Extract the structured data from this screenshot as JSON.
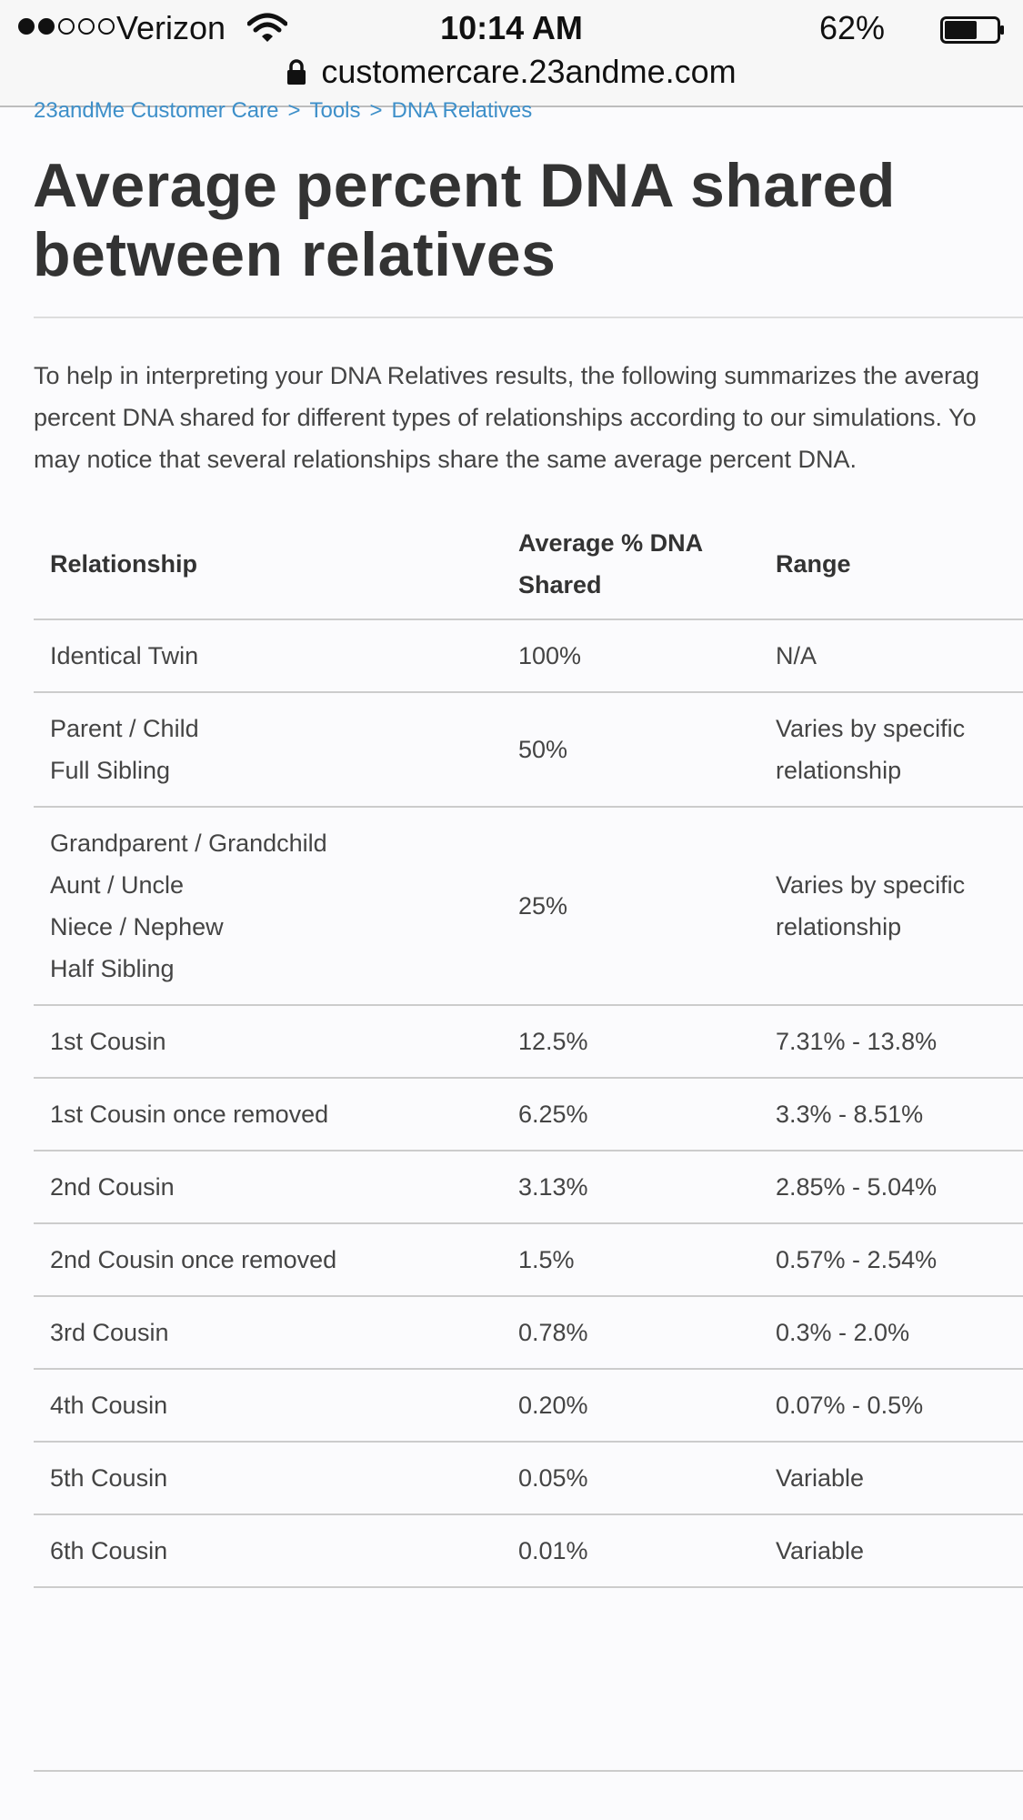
{
  "status_bar": {
    "carrier": "Verizon",
    "time": "10:14 AM",
    "battery_percent": "62%",
    "battery_level": 0.62,
    "signal_bars_filled": 2,
    "signal_bars_total": 5,
    "url": "customercare.23andme.com"
  },
  "breadcrumb": {
    "items": [
      "23andMe Customer Care",
      "Tools",
      "DNA Relatives"
    ],
    "separator": ">"
  },
  "page": {
    "title_line1": "Average percent DNA shared",
    "title_line2": "between relatives",
    "intro": "To help in interpreting your DNA Relatives results, the following summarizes the averag\npercent DNA shared for different types of relationships according to our simulations. Yo\nmay notice that several relationships share the same average percent DNA."
  },
  "table": {
    "headers": {
      "relationship": "Relationship",
      "average_line1": "Average % DNA",
      "average_line2": "Shared",
      "range": "Range"
    },
    "rows": [
      {
        "relationship": [
          "Identical Twin"
        ],
        "average": "100%",
        "range": [
          "N/A"
        ]
      },
      {
        "relationship": [
          "Parent / Child",
          "Full Sibling"
        ],
        "average": "50%",
        "range": [
          "Varies by specific",
          "relationship"
        ]
      },
      {
        "relationship": [
          "Grandparent / Grandchild",
          "Aunt / Uncle",
          "Niece / Nephew",
          "Half Sibling"
        ],
        "average": "25%",
        "range": [
          "Varies by specific",
          "relationship"
        ]
      },
      {
        "relationship": [
          "1st Cousin"
        ],
        "average": "12.5%",
        "range": [
          "7.31% - 13.8%"
        ]
      },
      {
        "relationship": [
          "1st Cousin once removed"
        ],
        "average": "6.25%",
        "range": [
          "3.3% - 8.51%"
        ]
      },
      {
        "relationship": [
          "2nd Cousin"
        ],
        "average": "3.13%",
        "range": [
          "2.85% - 5.04%"
        ]
      },
      {
        "relationship": [
          "2nd Cousin once removed"
        ],
        "average": "1.5%",
        "range": [
          "0.57% - 2.54%"
        ]
      },
      {
        "relationship": [
          "3rd Cousin"
        ],
        "average": "0.78%",
        "range": [
          "0.3% - 2.0%"
        ]
      },
      {
        "relationship": [
          "4th Cousin"
        ],
        "average": "0.20%",
        "range": [
          "0.07% - 0.5%"
        ]
      },
      {
        "relationship": [
          "5th Cousin"
        ],
        "average": "0.05%",
        "range": [
          "Variable"
        ]
      },
      {
        "relationship": [
          "6th Cousin"
        ],
        "average": "0.01%",
        "range": [
          "Variable"
        ]
      }
    ]
  }
}
